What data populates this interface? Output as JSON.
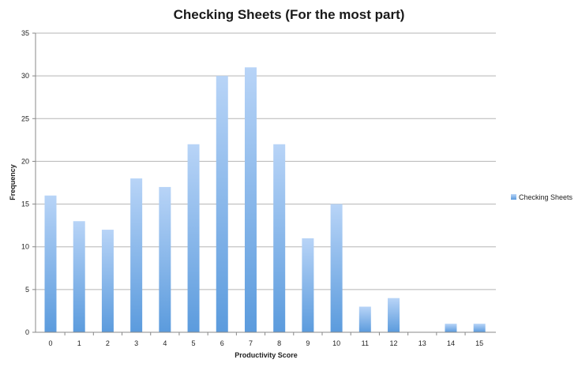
{
  "chart_data": {
    "type": "bar",
    "title": "Checking Sheets (For the most part)",
    "xlabel": "Productivity Score",
    "ylabel": "Frequency",
    "categories": [
      "0",
      "1",
      "2",
      "3",
      "4",
      "5",
      "6",
      "7",
      "8",
      "9",
      "10",
      "11",
      "12",
      "13",
      "14",
      "15"
    ],
    "series": [
      {
        "name": "Checking Sheets",
        "values": [
          16,
          13,
          12,
          18,
          17,
          22,
          30,
          31,
          22,
          11,
          15,
          3,
          4,
          0,
          1,
          1
        ],
        "color_top": "#b8d4f7",
        "color_bottom": "#5b9bdd"
      }
    ],
    "ylim": [
      0,
      35
    ],
    "yticks": [
      0,
      5,
      10,
      15,
      20,
      25,
      30,
      35
    ],
    "grid": true,
    "legend": "right"
  }
}
